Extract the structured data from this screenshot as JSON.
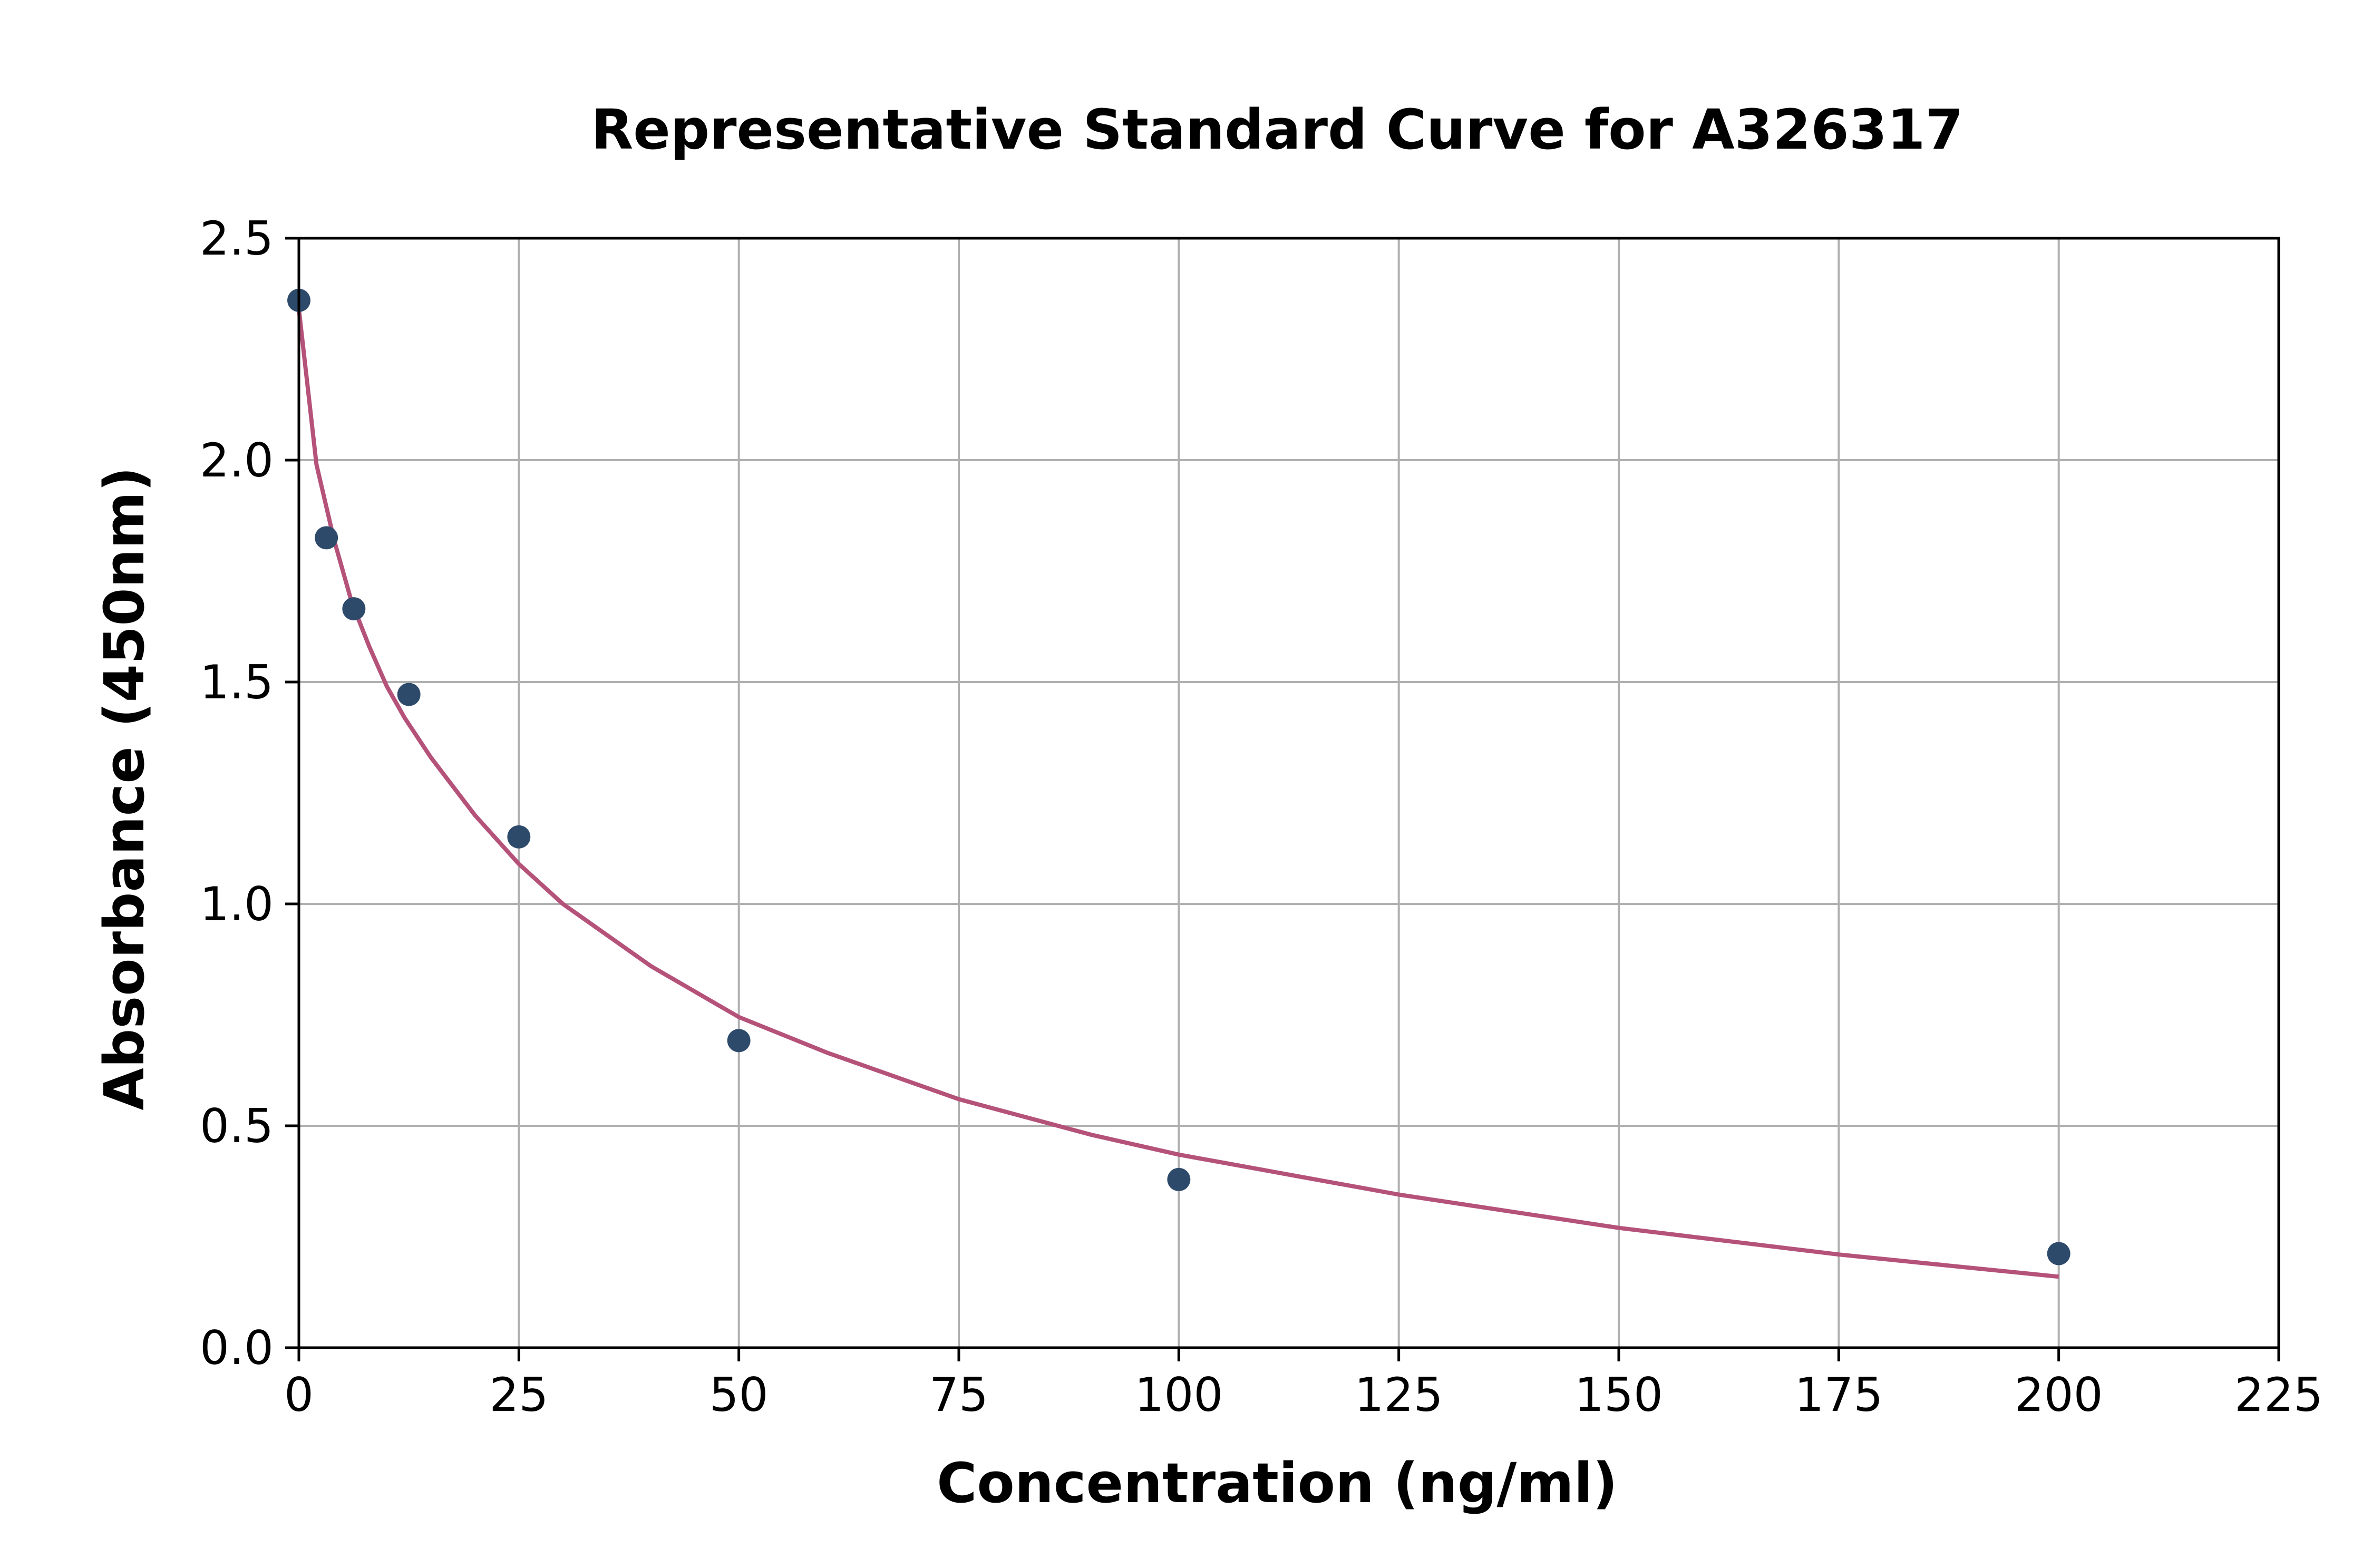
{
  "chart_data": {
    "type": "scatter",
    "title": "Representative Standard Curve for A326317",
    "xlabel": "Concentration (ng/ml)",
    "ylabel": "Absorbance (450nm)",
    "xlim": [
      0,
      225
    ],
    "ylim": [
      0,
      2.5
    ],
    "xticks": [
      "0",
      "25",
      "50",
      "75",
      "100",
      "125",
      "150",
      "175",
      "200",
      "225"
    ],
    "yticks": [
      "0.0",
      "0.5",
      "1.0",
      "1.5",
      "2.0",
      "2.5"
    ],
    "grid": true,
    "series": [
      {
        "kind": "points",
        "x": [
          0,
          3.125,
          6.25,
          12.5,
          25,
          50,
          100,
          200
        ],
        "y": [
          2.36,
          1.825,
          1.665,
          1.472,
          1.151,
          0.692,
          0.379,
          0.212
        ]
      },
      {
        "kind": "fit-curve",
        "x": [
          0,
          2,
          4,
          6,
          8,
          10,
          12,
          15,
          20,
          25,
          30,
          40,
          50,
          60,
          75,
          90,
          100,
          125,
          150,
          175,
          200
        ],
        "y": [
          2.34,
          1.99,
          1.82,
          1.68,
          1.58,
          1.49,
          1.42,
          1.33,
          1.2,
          1.09,
          1.0,
          0.86,
          0.745,
          0.665,
          0.56,
          0.48,
          0.435,
          0.345,
          0.27,
          0.21,
          0.16
        ]
      }
    ],
    "colors": {
      "points": "#2e4a6b",
      "curve": "#b5527a",
      "grid": "#b0b0b0",
      "axes": "#000000"
    }
  }
}
